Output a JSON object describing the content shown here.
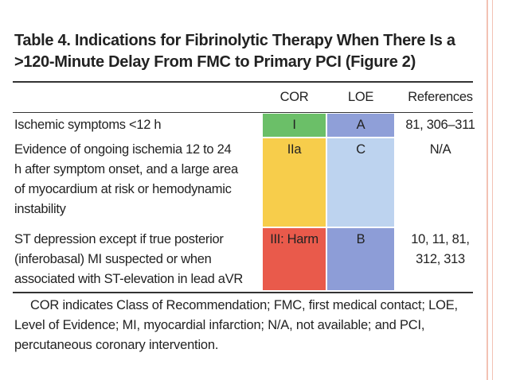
{
  "header": {
    "title": [
      "Table 4.   Indications for Fibrinolytic Therapy When There Is a",
      ">120-Minute Delay From FMC to Primary PCI (Figure 2)"
    ]
  },
  "table": {
    "header": [
      "COR",
      "LOE",
      "References"
    ],
    "rows": [
      [
        [
          "Ischemic symptoms <12 h"
        ],
        [
          "I"
        ],
        [
          "A"
        ],
        [
          "81, 306–311"
        ]
      ],
      [
        [
          "Evidence of ongoing ischemia 12 to 24",
          "h after symptom onset, and a large area",
          "of myocardium at risk or hemodynamic",
          "instability"
        ],
        [
          "IIa"
        ],
        [
          "C"
        ],
        [
          "N/A"
        ]
      ],
      [
        [
          "ST depression except if true posterior",
          "(inferobasal) MI suspected or when",
          "associated with ST-elevation in lead aVR"
        ],
        [
          "III: Harm"
        ],
        [
          "B"
        ],
        [
          "10, 11, 81,",
          "312, 313"
        ]
      ]
    ]
  },
  "footnote": [
    "COR indicates Class of Recommendation; FMC, first medical contact; LOE,",
    "Level of Evidence; MI, myocardial infarction; N/A, not available; and PCI,",
    "percutaneous coronary intervention."
  ]
}
